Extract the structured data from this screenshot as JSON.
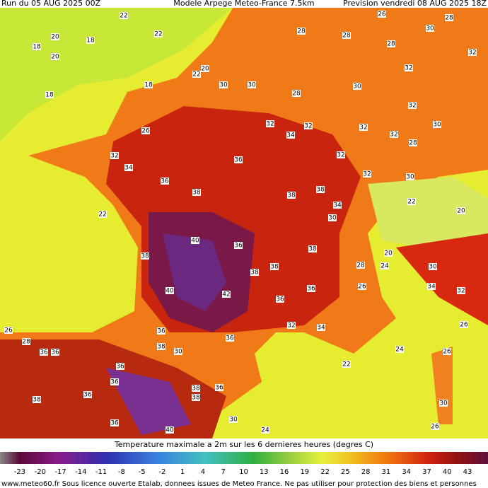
{
  "header": {
    "run": "Run du 05 AUG 2025 00Z",
    "model": "Modele Arpege Meteo-France 7.5km",
    "forecast": "Prevision vendredi 08 AUG 2025 18Z"
  },
  "map": {
    "contour_labels": [
      22,
      20,
      18,
      18,
      20,
      22,
      22,
      20,
      18,
      18,
      28,
      28,
      26,
      30,
      28,
      32,
      28,
      32,
      30,
      30,
      30,
      28,
      32,
      30,
      32,
      34,
      32,
      32,
      32,
      28,
      26,
      32,
      34,
      36,
      36,
      38,
      32,
      38,
      38,
      32,
      34,
      22,
      40,
      36,
      38,
      40,
      42,
      38,
      38,
      38,
      36,
      36,
      32,
      34,
      26,
      28,
      36,
      36,
      36,
      36,
      38,
      30,
      36,
      36,
      36,
      38,
      38,
      36,
      38,
      36,
      40,
      24,
      30,
      22,
      24,
      26,
      30,
      26,
      26,
      32,
      30,
      34,
      28,
      22,
      20,
      20,
      24,
      26,
      30,
      30
    ]
  },
  "legend": {
    "title": "Temperature maximale a 2m sur les 6 dernieres heures (degres C)",
    "ticks": [
      -23,
      -20,
      -17,
      -14,
      -11,
      -8,
      -5,
      -2,
      1,
      4,
      7,
      10,
      13,
      16,
      19,
      22,
      25,
      28,
      31,
      34,
      37,
      40,
      43
    ]
  },
  "footer": "www.meteo60.fr Sous licence ouverte Etalab, donnees issues de Meteo France. Ne pas utiliser pour protection des biens et personnes"
}
